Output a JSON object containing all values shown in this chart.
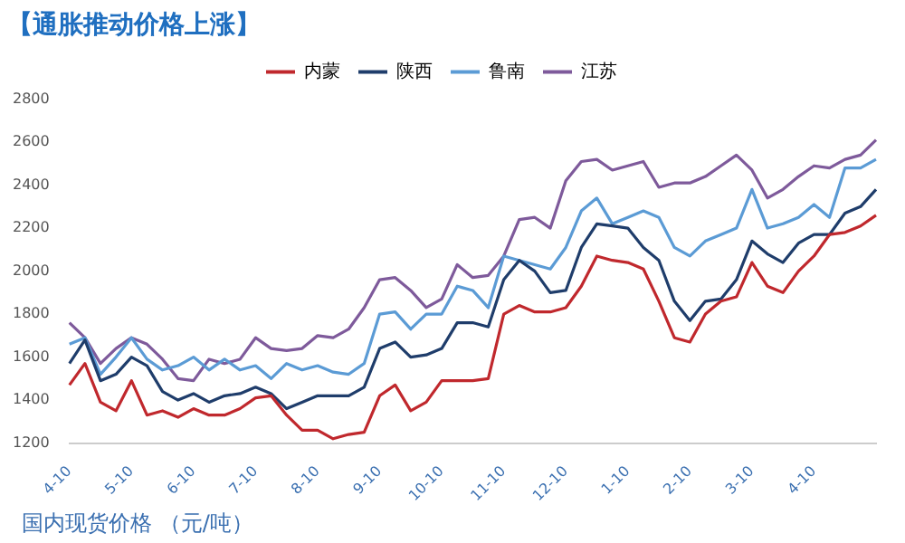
{
  "chart_data": {
    "type": "line",
    "title": "【通胀推动价格上涨】",
    "categories": [
      "4-10",
      null,
      null,
      null,
      "5-10",
      null,
      null,
      null,
      "6-10",
      null,
      null,
      null,
      "7-10",
      null,
      null,
      null,
      "8-10",
      null,
      null,
      null,
      "9-10",
      null,
      null,
      null,
      "10-10",
      null,
      null,
      null,
      "11-10",
      null,
      null,
      null,
      "12-10",
      null,
      null,
      null,
      "1-10",
      null,
      null,
      null,
      "2-10",
      null,
      null,
      null,
      "3-10",
      null,
      null,
      null,
      "4-10",
      null,
      null,
      null,
      null
    ],
    "series": [
      {
        "name": "内蒙",
        "color": "#c0282d",
        "values": [
          1470,
          1570,
          1390,
          1350,
          1490,
          1330,
          1350,
          1320,
          1360,
          1330,
          1330,
          1360,
          1410,
          1420,
          1330,
          1260,
          1260,
          1220,
          1240,
          1250,
          1420,
          1470,
          1350,
          1390,
          1490,
          1490,
          1490,
          1500,
          1800,
          1840,
          1810,
          1810,
          1830,
          1930,
          2070,
          2050,
          2040,
          2010,
          1860,
          1690,
          1670,
          1800,
          1860,
          1880,
          2040,
          1930,
          1900,
          2000,
          2070,
          2170,
          2180,
          2210,
          2260
        ]
      },
      {
        "name": "陕西",
        "color": "#1f3d6b",
        "values": [
          1570,
          1680,
          1490,
          1520,
          1600,
          1560,
          1440,
          1400,
          1430,
          1390,
          1420,
          1430,
          1460,
          1430,
          1360,
          1390,
          1420,
          1420,
          1420,
          1460,
          1640,
          1670,
          1600,
          1610,
          1640,
          1760,
          1760,
          1740,
          1960,
          2050,
          2000,
          1900,
          1910,
          2110,
          2220,
          2210,
          2200,
          2110,
          2050,
          1860,
          1770,
          1860,
          1870,
          1960,
          2140,
          2080,
          2040,
          2130,
          2170,
          2170,
          2270,
          2300,
          2380
        ]
      },
      {
        "name": "鲁南",
        "color": "#5b9bd5",
        "values": [
          1660,
          1690,
          1520,
          1600,
          1690,
          1590,
          1540,
          1560,
          1600,
          1540,
          1590,
          1540,
          1560,
          1500,
          1570,
          1540,
          1560,
          1530,
          1520,
          1570,
          1800,
          1810,
          1730,
          1800,
          1800,
          1930,
          1910,
          1830,
          2070,
          2050,
          2030,
          2010,
          2110,
          2280,
          2340,
          2220,
          2250,
          2280,
          2250,
          2110,
          2070,
          2140,
          2170,
          2200,
          2380,
          2200,
          2220,
          2250,
          2310,
          2250,
          2480,
          2480,
          2520
        ]
      },
      {
        "name": "江苏",
        "color": "#7e5a9b",
        "values": [
          1760,
          1690,
          1570,
          1640,
          1690,
          1660,
          1590,
          1500,
          1490,
          1590,
          1570,
          1590,
          1690,
          1640,
          1630,
          1640,
          1700,
          1690,
          1730,
          1830,
          1960,
          1970,
          1910,
          1830,
          1870,
          2030,
          1970,
          1980,
          2070,
          2240,
          2250,
          2200,
          2420,
          2510,
          2520,
          2470,
          2490,
          2510,
          2390,
          2410,
          2410,
          2440,
          2490,
          2540,
          2470,
          2340,
          2380,
          2440,
          2490,
          2480,
          2520,
          2540,
          2610
        ]
      }
    ],
    "ylim": [
      1200,
      2800
    ],
    "yticks": [
      1200,
      1400,
      1600,
      1800,
      2000,
      2200,
      2400,
      2600,
      2800
    ],
    "legend": "top",
    "marker": "none",
    "line_style": "solid",
    "annotations": [
      "国内现货价格 （元/吨）"
    ]
  }
}
